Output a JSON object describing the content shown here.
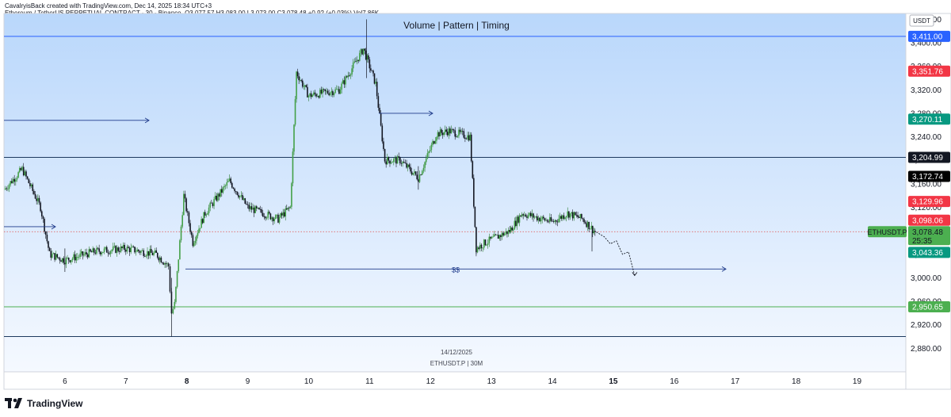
{
  "header": {
    "credit": "CavalryisBack created with TradingView.com, Dec 14, 2025 18:34 UTC+3",
    "symbol_info": "Ethereum / TetherUS PERPETUAL CONTRACT · 30 · Binance",
    "ohlc": "O3,077.57  H3,083.00  L3,073.00  C3,078.48  +0.92 (+0.03%)  Vol7.86K"
  },
  "chart_data": {
    "type": "candlestick",
    "title": "Volume | Pattern | Timing",
    "currency": "USDT",
    "symbol": "ETHUSDT.P",
    "interval_label": "ETHUSDT.P | 30M",
    "date_label": "14/12/2025",
    "ylim": [
      2840,
      3450
    ],
    "y_ticks": [
      3440,
      3400,
      3360,
      3320,
      3280,
      3240,
      3200,
      3160,
      3120,
      3080,
      3040,
      3000,
      2960,
      2920,
      2880
    ],
    "y_tick_labels": [
      "3,440.00",
      "3,400.00",
      "3,360.00",
      "3,320.00",
      "3,280.00",
      "3,240.00",
      "3,200.00",
      "3,160.00",
      "3,120.00",
      "3,080.00",
      "3,040.00",
      "3,000.00",
      "2,960.00",
      "2,920.00",
      "2,880.00"
    ],
    "x_day_labels": [
      "6",
      "7",
      "8",
      "9",
      "10",
      "11",
      "12",
      "13",
      "14",
      "15",
      "16",
      "17",
      "18",
      "19"
    ],
    "x_bold_labels": [
      "8",
      "15"
    ],
    "x_range_days": [
      5.0,
      19.8
    ],
    "last_price": 3078.48,
    "countdown": "25:35",
    "price_badges": [
      {
        "value": 3411.0,
        "label": "3,411.00",
        "color": "#2962ff"
      },
      {
        "value": 3351.76,
        "label": "3,351.76",
        "color": "#f23645"
      },
      {
        "value": 3270.11,
        "label": "3,270.11",
        "color": "#089981"
      },
      {
        "value": 3204.99,
        "label": "3,204.99",
        "color": "#131722"
      },
      {
        "value": 3172.74,
        "label": "3,172.74",
        "color": "#000000"
      },
      {
        "value": 3129.96,
        "label": "3,129.96",
        "color": "#f23645"
      },
      {
        "value": 3098.06,
        "label": "3,098.06",
        "color": "#f23645"
      },
      {
        "value": 3078.48,
        "label": "3,078.48",
        "color": "#4caf50"
      },
      {
        "value": 3043.36,
        "label": "3,043.36",
        "color": "#089981"
      },
      {
        "value": 2950.65,
        "label": "2,950.65",
        "color": "#4caf50"
      }
    ],
    "horizontal_lines": [
      {
        "value": 3411.0,
        "color": "#2962ff"
      },
      {
        "value": 3204.99,
        "color": "#1e3a5f"
      },
      {
        "value": 2950.65,
        "color": "#4caf50"
      },
      {
        "value": 2900.0,
        "color": "#1e3a5f"
      }
    ],
    "annotation": "$$",
    "key_points": [
      {
        "day": 5.0,
        "price": 3150
      },
      {
        "day": 5.3,
        "price": 3185
      },
      {
        "day": 5.6,
        "price": 3120
      },
      {
        "day": 5.75,
        "price": 3040
      },
      {
        "day": 6.0,
        "price": 3030
      },
      {
        "day": 6.5,
        "price": 3045
      },
      {
        "day": 7.0,
        "price": 3050
      },
      {
        "day": 7.5,
        "price": 3040
      },
      {
        "day": 7.7,
        "price": 3020
      },
      {
        "day": 7.75,
        "price": 2940
      },
      {
        "day": 7.8,
        "price": 2955
      },
      {
        "day": 7.95,
        "price": 3140
      },
      {
        "day": 8.1,
        "price": 3060
      },
      {
        "day": 8.3,
        "price": 3110
      },
      {
        "day": 8.7,
        "price": 3165
      },
      {
        "day": 9.0,
        "price": 3120
      },
      {
        "day": 9.5,
        "price": 3100
      },
      {
        "day": 9.7,
        "price": 3120
      },
      {
        "day": 9.8,
        "price": 3350
      },
      {
        "day": 10.0,
        "price": 3310
      },
      {
        "day": 10.5,
        "price": 3320
      },
      {
        "day": 10.9,
        "price": 3390
      },
      {
        "day": 11.1,
        "price": 3330
      },
      {
        "day": 11.25,
        "price": 3200
      },
      {
        "day": 11.5,
        "price": 3200
      },
      {
        "day": 11.8,
        "price": 3170
      },
      {
        "day": 12.1,
        "price": 3245
      },
      {
        "day": 12.3,
        "price": 3250
      },
      {
        "day": 12.65,
        "price": 3240
      },
      {
        "day": 12.75,
        "price": 3050
      },
      {
        "day": 12.9,
        "price": 3060
      },
      {
        "day": 13.3,
        "price": 3080
      },
      {
        "day": 13.5,
        "price": 3110
      },
      {
        "day": 14.0,
        "price": 3095
      },
      {
        "day": 14.25,
        "price": 3110
      },
      {
        "day": 14.5,
        "price": 3100
      },
      {
        "day": 14.7,
        "price": 3078
      }
    ]
  },
  "footer": {
    "brand": "TradingView"
  }
}
